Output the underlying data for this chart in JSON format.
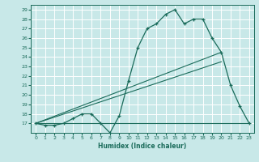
{
  "xlabel": "Humidex (Indice chaleur)",
  "bg_color": "#c8e8e8",
  "grid_color": "#ffffff",
  "line_color": "#1a6b5a",
  "xlim": [
    -0.5,
    23.5
  ],
  "ylim": [
    16,
    29.5
  ],
  "yticks": [
    17,
    18,
    19,
    20,
    21,
    22,
    23,
    24,
    25,
    26,
    27,
    28,
    29
  ],
  "xticks": [
    0,
    1,
    2,
    3,
    4,
    5,
    6,
    7,
    8,
    9,
    10,
    11,
    12,
    13,
    14,
    15,
    16,
    17,
    18,
    19,
    20,
    21,
    22,
    23
  ],
  "series1_x": [
    0,
    1,
    2,
    3,
    4,
    5,
    6,
    7,
    8,
    9,
    10,
    11,
    12,
    13,
    14,
    15,
    16,
    17,
    18,
    19,
    20,
    21,
    22,
    23
  ],
  "series1_y": [
    17.0,
    16.8,
    16.8,
    17.0,
    17.5,
    18.0,
    18.0,
    17.0,
    16.0,
    17.8,
    21.5,
    25.0,
    27.0,
    27.5,
    28.5,
    29.0,
    27.5,
    28.0,
    28.0,
    26.0,
    24.5,
    21.0,
    18.8,
    17.0
  ],
  "series2_x": [
    0,
    23
  ],
  "series2_y": [
    17.0,
    17.0
  ],
  "series3_x": [
    0,
    20
  ],
  "series3_y": [
    17.0,
    24.5
  ],
  "series4_x": [
    0,
    20
  ],
  "series4_y": [
    17.0,
    23.5
  ]
}
